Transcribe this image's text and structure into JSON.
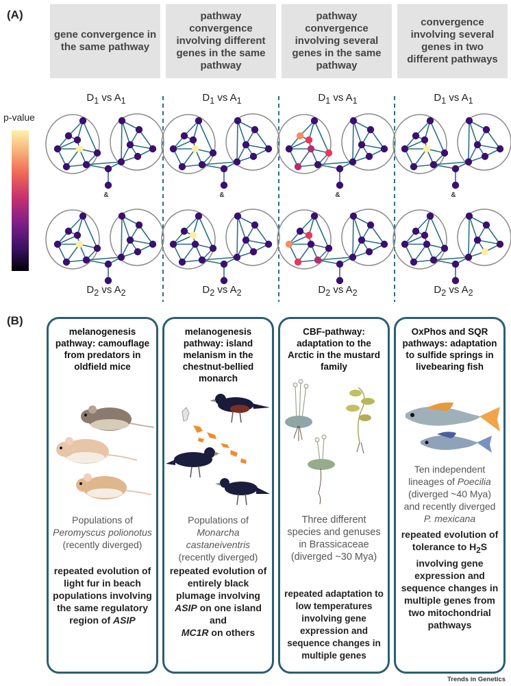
{
  "panelA": {
    "label": "(A)",
    "legend_label": "p-value",
    "amp": "&",
    "columns": [
      {
        "header": "gene convergence in the same pathway",
        "top": "D1 vs A1",
        "bottom": "D2 vs A2"
      },
      {
        "header": "pathway convergence involving different genes in the same pathway",
        "top": "D1 vs A1",
        "bottom": "D2 vs A2"
      },
      {
        "header": "pathway convergence involving several genes in the same pathway",
        "top": "D1 vs A1",
        "bottom": "D2 vs A2"
      },
      {
        "header": "convergence involving several genes in two different pathways",
        "top": "D1 vs A1",
        "bottom": "D2 vs A2"
      }
    ],
    "colors": {
      "node": "#3b0f70",
      "edge": "#2a6f84",
      "ellipse": "#8a8a8a",
      "high": "#fcefa4",
      "mid": "#e8395a",
      "orange": "#f58f63",
      "magenta": "#b62c73"
    }
  },
  "panelB": {
    "label": "(B)",
    "cards": [
      {
        "title": "melanogenesis pathway: camouflage from predators in oldfield mice",
        "pop_pre": "Populations of",
        "pop_species": "Peromyscus polionotus",
        "pop_post": "(recently diverged)",
        "res_pre": "repeated evolution of light fur in beach populations involving the same regulatory region of",
        "res_gene": "ASIP"
      },
      {
        "title": "melanogenesis pathway: island melanism in the chestnut-bellied monarch",
        "pop_pre": "Populations of",
        "pop_species": "Monarcha castaneiventris",
        "pop_post": "(recently diverged)",
        "res_pre": "repeated evolution of entirely black plumage involving",
        "res_gene": "ASIP",
        "res_mid": "on one island and",
        "res_gene2": "MC1R",
        "res_post": "on others"
      },
      {
        "title": "CBF-pathway: adaptation to the Arctic in the mustard family",
        "pop_text": "Three different species and genuses in Brassicaceae (diverged ~30 Mya)",
        "res_text": "repeated adaptation to low temperatures involving gene expression and sequence changes in multiple genes"
      },
      {
        "title": "OxPhos and SQR pathways: adaptation to sulfide springs in livebearing fish",
        "pop_pre": "Ten independent lineages of",
        "pop_genus": "Poecilia",
        "pop_mid": "(diverged ~40 Mya) and recently diverged",
        "pop_species": "P. mexicana",
        "res_pre": "repeated evolution of tolerance to H",
        "res_sub": "2",
        "res_mid": "S involving gene expression and sequence changes in multiple genes from two mitochondrial pathways"
      }
    ]
  },
  "footer": "Trends in Genetics"
}
